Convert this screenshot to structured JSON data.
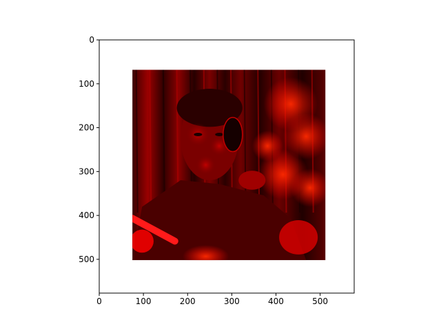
{
  "chart_data": {
    "type": "image",
    "title": "",
    "xlabel": "",
    "ylabel": "",
    "xlim": [
      0,
      577
    ],
    "ylim": [
      577,
      0
    ],
    "y_inverted": true,
    "xticks": [
      0,
      100,
      200,
      300,
      400,
      500
    ],
    "yticks": [
      0,
      100,
      200,
      300,
      400,
      500
    ],
    "image_extent": {
      "x0": 75,
      "x1": 512,
      "y0": 68,
      "y1": 502
    },
    "image_description": "red-tinted photograph of a man holding a cigarette, smoke around him",
    "colormap": "red channel (black to red)",
    "axes_background": "#ffffff",
    "grid": false,
    "legend": "none"
  }
}
